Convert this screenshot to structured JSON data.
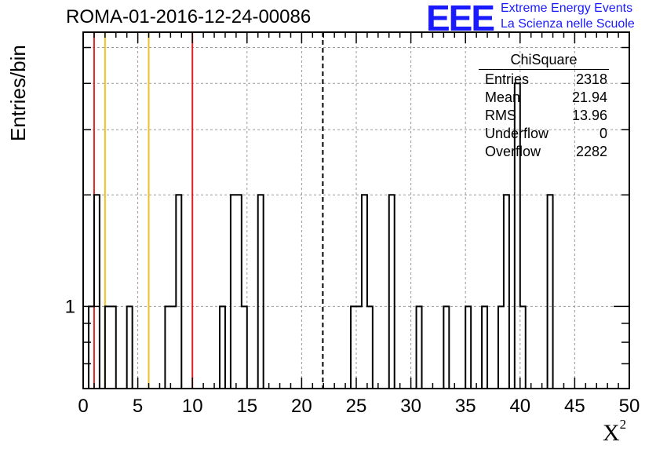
{
  "title": "ROMA-01-2016-12-24-00086",
  "logo": {
    "mark": "EEE",
    "line1": "Extreme Energy Events",
    "line2": "La Scienza nelle Scuole",
    "color": "#1a1aff"
  },
  "stats": {
    "title": "ChiSquare",
    "rows": [
      {
        "label": "Entries",
        "value": "2318"
      },
      {
        "label": "Mean",
        "value": "21.94"
      },
      {
        "label": "RMS",
        "value": "13.96"
      },
      {
        "label": "Underflow",
        "value": "0"
      },
      {
        "label": "Overflow",
        "value": "2282"
      }
    ]
  },
  "chart_data": {
    "type": "histogram",
    "ylabel": "Entries/bin",
    "xlabel": "X",
    "xlabel_sup": "2",
    "xlim": [
      0,
      50
    ],
    "ylim": [
      0.6,
      5.5
    ],
    "yscale": "log",
    "grid": true,
    "bin_width": 0.5,
    "x_ticks": [
      "0",
      "5",
      "10",
      "15",
      "20",
      "25",
      "30",
      "35",
      "40",
      "45",
      "50"
    ],
    "y_ticks": [
      "1"
    ],
    "bins": [
      {
        "x": 0.5,
        "y": 1
      },
      {
        "x": 1.0,
        "y": 2
      },
      {
        "x": 2.0,
        "y": 1
      },
      {
        "x": 2.5,
        "y": 1
      },
      {
        "x": 4.0,
        "y": 1
      },
      {
        "x": 7.5,
        "y": 1
      },
      {
        "x": 8.0,
        "y": 1
      },
      {
        "x": 8.5,
        "y": 2
      },
      {
        "x": 12.5,
        "y": 1
      },
      {
        "x": 13.5,
        "y": 2
      },
      {
        "x": 14.0,
        "y": 2
      },
      {
        "x": 14.5,
        "y": 1
      },
      {
        "x": 16.0,
        "y": 2
      },
      {
        "x": 24.5,
        "y": 1
      },
      {
        "x": 25.0,
        "y": 1
      },
      {
        "x": 25.5,
        "y": 2
      },
      {
        "x": 26.0,
        "y": 1
      },
      {
        "x": 28.0,
        "y": 2
      },
      {
        "x": 30.5,
        "y": 1
      },
      {
        "x": 33.0,
        "y": 1
      },
      {
        "x": 35.0,
        "y": 1
      },
      {
        "x": 36.5,
        "y": 1
      },
      {
        "x": 38.0,
        "y": 1
      },
      {
        "x": 38.5,
        "y": 2
      },
      {
        "x": 39.5,
        "y": 4
      },
      {
        "x": 40.0,
        "y": 1
      },
      {
        "x": 42.5,
        "y": 2
      }
    ],
    "vlines": [
      {
        "x": 1,
        "color": "#dd2222",
        "style": "solid"
      },
      {
        "x": 2,
        "color": "#f0c020",
        "style": "solid"
      },
      {
        "x": 6,
        "color": "#f0c020",
        "style": "solid"
      },
      {
        "x": 10,
        "color": "#dd2222",
        "style": "solid"
      },
      {
        "x": 21.94,
        "color": "#000000",
        "style": "dashed"
      }
    ]
  }
}
